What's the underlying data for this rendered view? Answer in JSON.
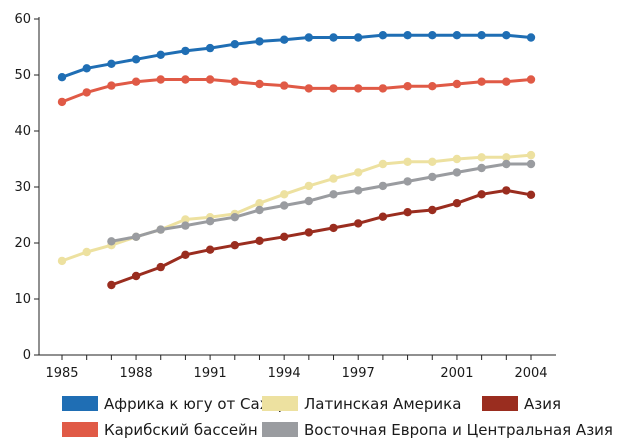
{
  "chart_data": {
    "type": "line",
    "title": "",
    "xlabel": "",
    "ylabel": "",
    "x": [
      1985,
      1986,
      1987,
      1988,
      1989,
      1990,
      1991,
      1992,
      1993,
      1994,
      1995,
      1996,
      1997,
      1998,
      1999,
      2000,
      2001,
      2002,
      2003,
      2004
    ],
    "xticks": [
      "1985",
      "1988",
      "1991",
      "1994",
      "1997",
      "2001",
      "2004"
    ],
    "xtick_values": [
      1985,
      1988,
      1991,
      1994,
      1997,
      2001,
      2004
    ],
    "yticks": [
      "0",
      "10",
      "20",
      "30",
      "40",
      "50",
      "60"
    ],
    "ylim": [
      0,
      60
    ],
    "xlim": [
      1985,
      2004
    ],
    "grid": false,
    "legend_position": "bottom",
    "series": [
      {
        "name": "Африка к югу от Сахары",
        "color": "#1f6eb4",
        "values": [
          49.6,
          51.2,
          52.0,
          52.8,
          53.6,
          54.3,
          54.8,
          55.5,
          56.0,
          56.3,
          56.7,
          56.7,
          56.7,
          57.1,
          57.1,
          57.1,
          57.1,
          57.1,
          57.1,
          56.7
        ]
      },
      {
        "name": "Карибский бассейн",
        "color": "#e05a46",
        "values": [
          45.2,
          46.9,
          48.1,
          48.8,
          49.2,
          49.2,
          49.2,
          48.8,
          48.4,
          48.1,
          47.6,
          47.6,
          47.6,
          47.6,
          48.0,
          48.0,
          48.4,
          48.8,
          48.8,
          49.2
        ]
      },
      {
        "name": "Латинская Америка",
        "color": "#ede1a0",
        "values": [
          16.8,
          18.4,
          19.6,
          21.1,
          22.4,
          24.2,
          24.6,
          25.2,
          27.1,
          28.7,
          30.2,
          31.5,
          32.6,
          34.1,
          34.5,
          34.5,
          35.0,
          35.3,
          35.3,
          35.7
        ]
      },
      {
        "name": "Восточная Европа и Центральная Азия",
        "color": "#9a9ca0",
        "values": [
          null,
          null,
          20.3,
          21.1,
          22.4,
          23.1,
          23.9,
          24.6,
          25.9,
          26.7,
          27.5,
          28.7,
          29.4,
          30.2,
          31.0,
          31.8,
          32.6,
          33.4,
          34.1,
          34.1
        ]
      },
      {
        "name": "Азия",
        "color": "#9a2d1f",
        "values": [
          null,
          null,
          12.5,
          14.1,
          15.7,
          17.9,
          18.8,
          19.6,
          20.4,
          21.1,
          21.9,
          22.7,
          23.5,
          24.7,
          25.5,
          25.9,
          27.1,
          28.7,
          29.4,
          28.6
        ]
      }
    ]
  },
  "legend": {
    "rows": [
      [
        "Африка к югу от Сахары",
        "Латинская Америка",
        "Азия"
      ],
      [
        "Карибский бассейн",
        "Восточная Европа и Центральная Азия"
      ]
    ]
  }
}
